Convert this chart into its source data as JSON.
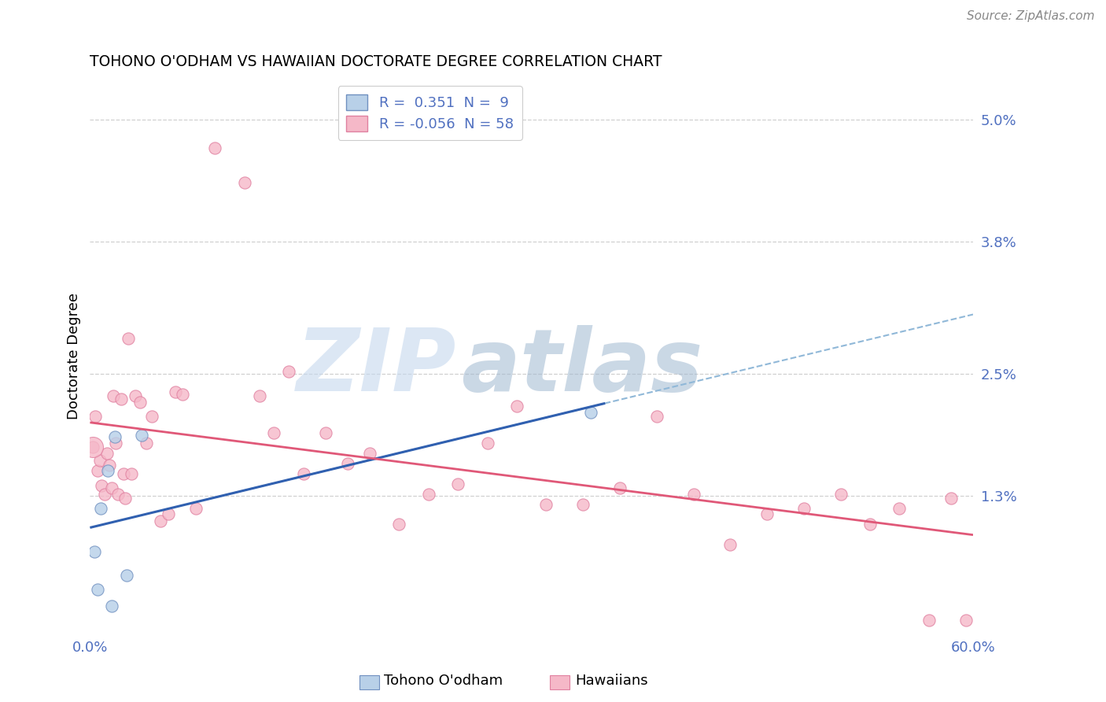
{
  "title": "TOHONO O'ODHAM VS HAWAIIAN DOCTORATE DEGREE CORRELATION CHART",
  "source": "Source: ZipAtlas.com",
  "ylabel": "Doctorate Degree",
  "ytick_values": [
    1.3,
    2.5,
    3.8,
    5.0
  ],
  "xlim": [
    0.0,
    60.0
  ],
  "ylim": [
    -0.05,
    5.4
  ],
  "watermark_zip": "ZIP",
  "watermark_atlas": "atlas",
  "blue_fill": "#b8d0e8",
  "pink_fill": "#f5b8c8",
  "blue_edge": "#7090c0",
  "pink_edge": "#e080a0",
  "trend_blue_color": "#3060b0",
  "trend_pink_color": "#e05878",
  "dashed_color": "#90b8d8",
  "grid_color": "#d0d0d0",
  "axis_label_color": "#5070c0",
  "background": "#ffffff",
  "tohono_x": [
    0.3,
    0.5,
    0.7,
    1.2,
    1.5,
    1.7,
    2.5,
    3.5,
    34.0
  ],
  "tohono_y": [
    0.75,
    0.38,
    1.18,
    1.55,
    0.22,
    1.88,
    0.52,
    1.9,
    2.12
  ],
  "tohono_size": 120,
  "hawaiian_x": [
    0.2,
    0.35,
    0.5,
    0.65,
    0.8,
    1.0,
    1.15,
    1.3,
    1.45,
    1.6,
    1.75,
    1.9,
    2.1,
    2.25,
    2.4,
    2.6,
    2.8,
    3.1,
    3.4,
    3.8,
    4.2,
    4.8,
    5.3,
    5.8,
    6.3,
    7.2,
    8.5,
    10.5,
    11.5,
    12.5,
    13.5,
    14.5,
    16.0,
    17.5,
    19.0,
    21.0,
    23.0,
    25.0,
    27.0,
    29.0,
    31.0,
    33.5,
    36.0,
    38.5,
    41.0,
    43.5,
    46.0,
    48.5,
    51.0,
    53.0,
    55.0,
    57.0,
    58.5,
    59.5
  ],
  "hawaiian_y": [
    1.78,
    2.08,
    1.55,
    1.65,
    1.4,
    1.32,
    1.72,
    1.6,
    1.38,
    2.28,
    1.82,
    1.32,
    2.25,
    1.52,
    1.28,
    2.85,
    1.52,
    2.28,
    2.22,
    1.82,
    2.08,
    1.05,
    1.12,
    2.32,
    2.3,
    1.18,
    4.72,
    4.38,
    2.28,
    1.92,
    2.52,
    1.52,
    1.92,
    1.62,
    1.72,
    1.02,
    1.32,
    1.42,
    1.82,
    2.18,
    1.22,
    1.22,
    1.38,
    2.08,
    1.32,
    0.82,
    1.12,
    1.18,
    1.32,
    1.02,
    1.18,
    0.08,
    1.28,
    0.08
  ],
  "hawaiian_size": 120,
  "large_pink_x": 0.2,
  "large_pink_y": 1.78,
  "large_pink_size": 350,
  "blue_trend_x_end": 35.0,
  "dashed_x_start": 8.0,
  "dashed_x_end": 60.0
}
